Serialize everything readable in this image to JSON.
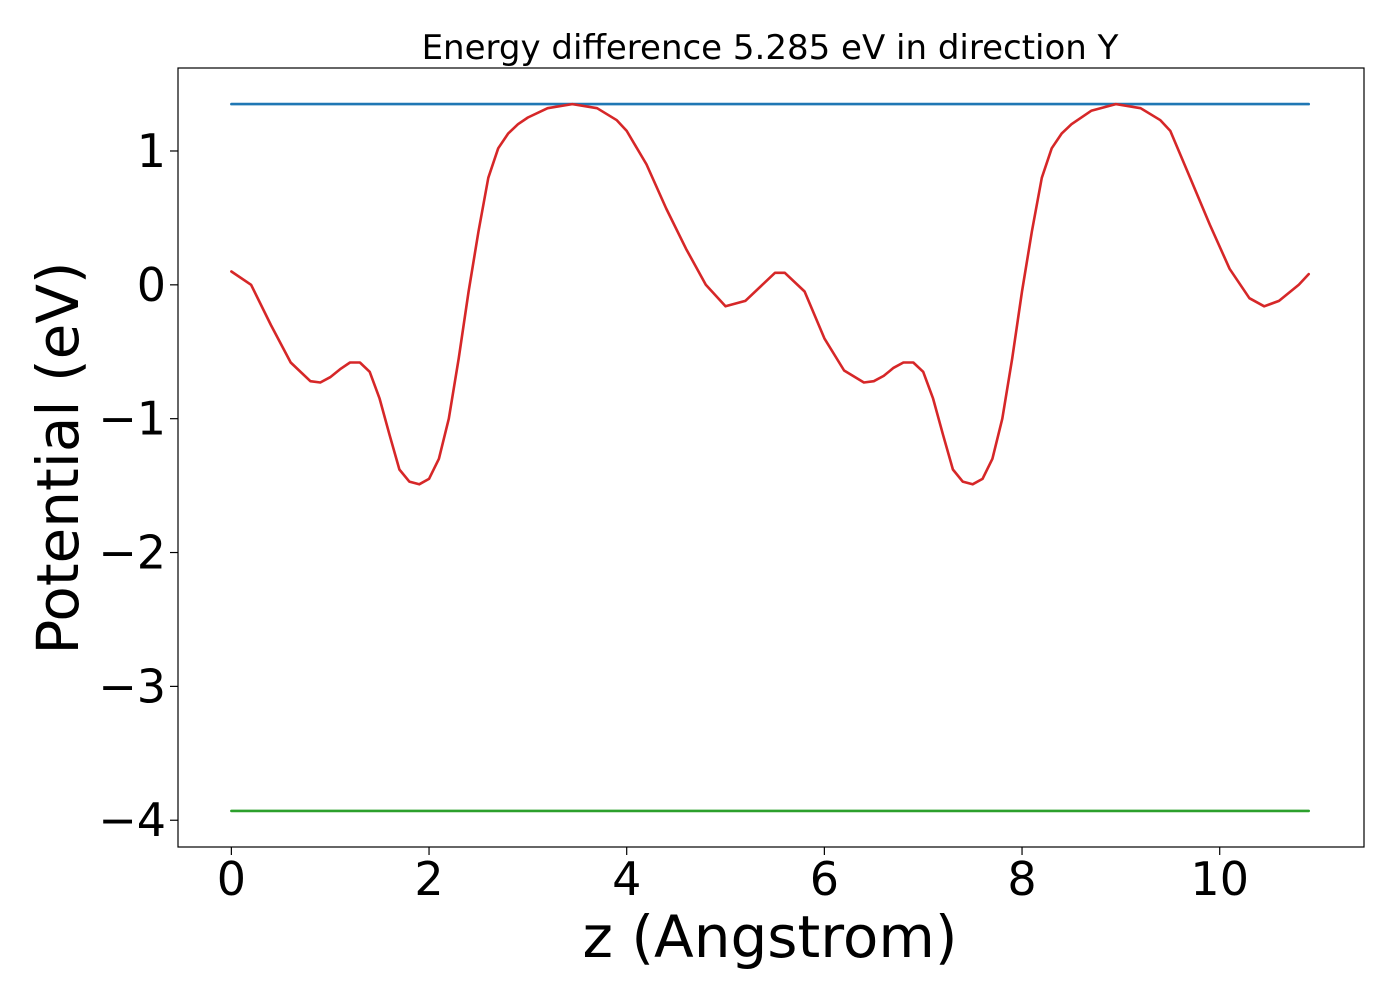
{
  "chart_data": {
    "type": "line",
    "title": "Energy difference 5.285 eV in direction Y",
    "xlabel": "z (Angstrom)",
    "ylabel": "Potential (eV)",
    "xlim": [
      -0.54,
      11.46
    ],
    "ylim": [
      -4.2,
      1.62
    ],
    "xticks": [
      0,
      2,
      4,
      6,
      8,
      10
    ],
    "xtick_labels": [
      "0",
      "2",
      "4",
      "6",
      "8",
      "10"
    ],
    "yticks": [
      1,
      0,
      -1,
      -2,
      -3,
      -4
    ],
    "ytick_labels": [
      "1",
      "0",
      "−1",
      "−2",
      "−3",
      "−4"
    ],
    "grid": false,
    "series": [
      {
        "color": "#d62728",
        "x": [
          0,
          0.2,
          0.4,
          0.6,
          0.8,
          0.9,
          1.0,
          1.1,
          1.2,
          1.3,
          1.4,
          1.5,
          1.6,
          1.7,
          1.8,
          1.9,
          2.0,
          2.1,
          2.2,
          2.3,
          2.4,
          2.5,
          2.6,
          2.7,
          2.8,
          2.9,
          3.0,
          3.2,
          3.45,
          3.7,
          3.9,
          4.0,
          4.2,
          4.4,
          4.6,
          4.8,
          5.0,
          5.2,
          5.4,
          5.5,
          5.6,
          5.8,
          6.0,
          6.2,
          6.4,
          6.5,
          6.6,
          6.7,
          6.8,
          6.9,
          7.0,
          7.1,
          7.2,
          7.3,
          7.4,
          7.5,
          7.6,
          7.7,
          7.8,
          7.9,
          8.0,
          8.1,
          8.2,
          8.3,
          8.4,
          8.5,
          8.7,
          8.95,
          9.2,
          9.4,
          9.5,
          9.7,
          9.9,
          10.1,
          10.3,
          10.45,
          10.6,
          10.8,
          10.9
        ],
        "y": [
          0.1,
          0.0,
          -0.3,
          -0.58,
          -0.72,
          -0.73,
          -0.69,
          -0.63,
          -0.58,
          -0.58,
          -0.65,
          -0.85,
          -1.12,
          -1.38,
          -1.47,
          -1.49,
          -1.45,
          -1.3,
          -1.0,
          -0.55,
          -0.05,
          0.4,
          0.8,
          1.02,
          1.13,
          1.2,
          1.25,
          1.32,
          1.35,
          1.32,
          1.23,
          1.15,
          0.9,
          0.57,
          0.27,
          0.0,
          -0.16,
          -0.12,
          0.02,
          0.09,
          0.09,
          -0.05,
          -0.4,
          -0.64,
          -0.73,
          -0.72,
          -0.68,
          -0.62,
          -0.58,
          -0.58,
          -0.65,
          -0.85,
          -1.12,
          -1.38,
          -1.47,
          -1.49,
          -1.45,
          -1.3,
          -1.0,
          -0.55,
          -0.05,
          0.4,
          0.8,
          1.02,
          1.13,
          1.2,
          1.3,
          1.35,
          1.32,
          1.23,
          1.15,
          0.8,
          0.45,
          0.12,
          -0.1,
          -0.16,
          -0.12,
          0.0,
          0.08
        ]
      },
      {
        "color": "#1f77b4",
        "x": [
          0,
          10.9
        ],
        "y": [
          1.35,
          1.35
        ]
      },
      {
        "color": "#2ca02c",
        "x": [
          0,
          10.9
        ],
        "y": [
          -3.93,
          -3.93
        ]
      }
    ]
  }
}
